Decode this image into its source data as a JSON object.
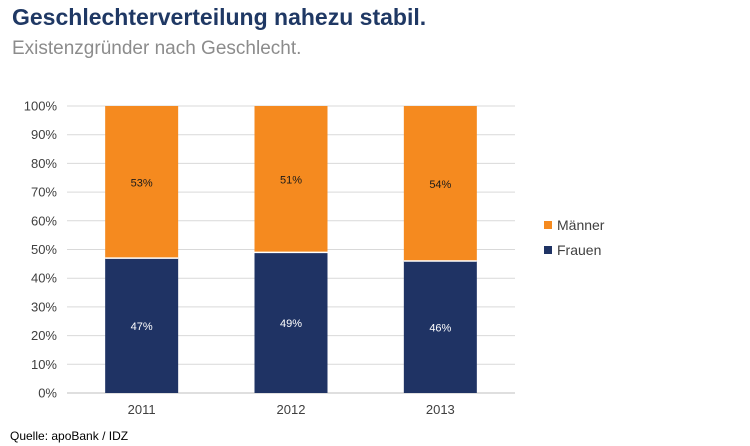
{
  "header": {
    "title": "Geschlechterverteilung nahezu stabil.",
    "subtitle": "Existenzgründer nach Geschlecht."
  },
  "footer": {
    "source": "Quelle: apoBank / IDZ"
  },
  "colors": {
    "frauen": "#1f3364",
    "maenner": "#f58a1f",
    "grid": "#d9d9d9",
    "axis_text": "#404040"
  },
  "chart_data": {
    "type": "bar",
    "stacked": true,
    "categories": [
      "2011",
      "2012",
      "2013"
    ],
    "series": [
      {
        "name": "Frauen",
        "values": [
          47,
          49,
          46
        ],
        "labels": [
          "47%",
          "49%",
          "46%"
        ]
      },
      {
        "name": "Männer",
        "values": [
          53,
          51,
          54
        ],
        "labels": [
          "53%",
          "51%",
          "54%"
        ]
      }
    ],
    "ylim": [
      0,
      100
    ],
    "yticks": [
      "0%",
      "10%",
      "20%",
      "30%",
      "40%",
      "50%",
      "60%",
      "70%",
      "80%",
      "90%",
      "100%"
    ],
    "grid": true,
    "legend": "right",
    "legend_order": [
      "Männer",
      "Frauen"
    ]
  }
}
